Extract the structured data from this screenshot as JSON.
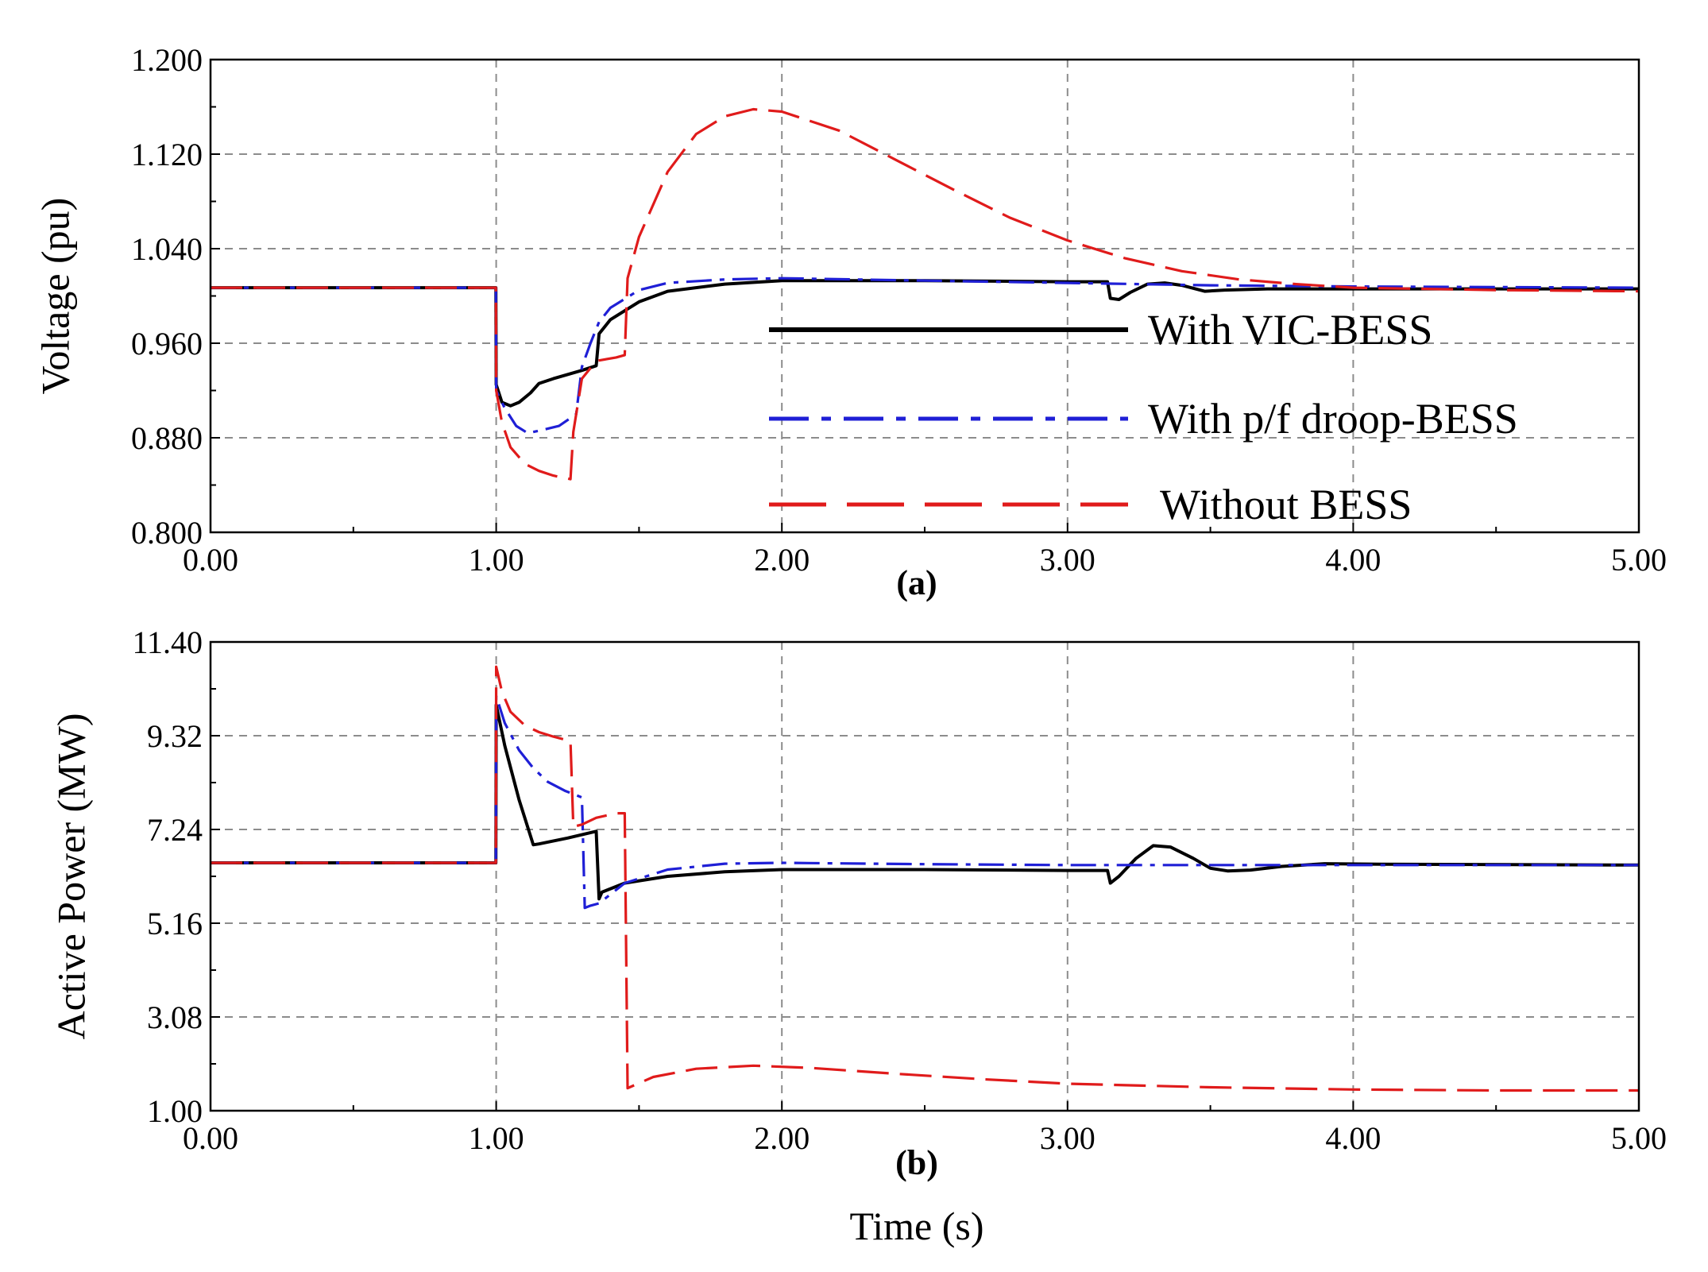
{
  "chart_data": [
    {
      "type": "line",
      "panel_label": "(a)",
      "ylabel": "Voltage (pu)",
      "xlabel": "",
      "xlim": [
        0,
        5
      ],
      "ylim": [
        0.8,
        1.2
      ],
      "x_ticks": [
        "0.00",
        "1.00",
        "2.00",
        "3.00",
        "4.00",
        "5.00"
      ],
      "y_ticks": [
        "0.800",
        "0.880",
        "0.960",
        "1.040",
        "1.120",
        "1.200"
      ],
      "grid": true,
      "legend_position": "center-right",
      "series": [
        {
          "name": "With VIC-BESS",
          "color": "#000000",
          "style": "solid",
          "x": [
            0,
            0.999,
            1.0,
            1.02,
            1.05,
            1.08,
            1.12,
            1.15,
            1.2,
            1.3,
            1.35,
            1.36,
            1.4,
            1.5,
            1.6,
            1.8,
            2.0,
            2.5,
            3.0,
            3.14,
            3.15,
            3.18,
            3.22,
            3.28,
            3.34,
            3.4,
            3.48,
            3.55,
            3.7,
            4.0,
            5.0
          ],
          "values": [
            1.007,
            1.007,
            0.925,
            0.91,
            0.907,
            0.91,
            0.918,
            0.926,
            0.93,
            0.937,
            0.941,
            0.968,
            0.98,
            0.995,
            1.004,
            1.01,
            1.013,
            1.013,
            1.012,
            1.012,
            0.998,
            0.997,
            1.003,
            1.01,
            1.011,
            1.009,
            1.004,
            1.005,
            1.006,
            1.006,
            1.006
          ]
        },
        {
          "name": "With p/f droop-BESS",
          "color": "#1f1fd6",
          "style": "dashdot",
          "x": [
            0,
            0.999,
            1.0,
            1.03,
            1.07,
            1.11,
            1.15,
            1.22,
            1.28,
            1.3,
            1.33,
            1.36,
            1.4,
            1.5,
            1.6,
            1.8,
            2.0,
            2.5,
            3.0,
            3.5,
            4.0,
            5.0
          ],
          "values": [
            1.007,
            1.007,
            0.92,
            0.905,
            0.89,
            0.884,
            0.886,
            0.89,
            0.9,
            0.94,
            0.96,
            0.978,
            0.99,
            1.005,
            1.011,
            1.014,
            1.015,
            1.013,
            1.011,
            1.009,
            1.008,
            1.007
          ]
        },
        {
          "name": "Without BESS",
          "color": "#e01b1b",
          "style": "dashed",
          "x": [
            0,
            0.999,
            1.0,
            1.02,
            1.05,
            1.1,
            1.15,
            1.2,
            1.26,
            1.27,
            1.3,
            1.35,
            1.42,
            1.45,
            1.46,
            1.5,
            1.6,
            1.7,
            1.8,
            1.9,
            2.0,
            2.2,
            2.4,
            2.6,
            2.8,
            3.0,
            3.2,
            3.4,
            3.6,
            3.8,
            4.0,
            4.5,
            5.0
          ],
          "values": [
            1.007,
            1.007,
            0.92,
            0.893,
            0.872,
            0.858,
            0.852,
            0.848,
            0.845,
            0.885,
            0.93,
            0.945,
            0.948,
            0.95,
            1.015,
            1.05,
            1.105,
            1.137,
            1.152,
            1.158,
            1.156,
            1.14,
            1.115,
            1.09,
            1.066,
            1.047,
            1.032,
            1.021,
            1.014,
            1.01,
            1.007,
            1.005,
            1.004
          ]
        }
      ]
    },
    {
      "type": "line",
      "panel_label": "(b)",
      "ylabel": "Active Power (MW)",
      "xlabel": "Time (s)",
      "xlim": [
        0,
        5
      ],
      "ylim": [
        1.0,
        11.4
      ],
      "x_ticks": [
        "0.00",
        "1.00",
        "2.00",
        "3.00",
        "4.00",
        "5.00"
      ],
      "y_ticks": [
        "1.00",
        "3.08",
        "5.16",
        "7.24",
        "9.32",
        "11.40"
      ],
      "grid": true,
      "series": [
        {
          "name": "With VIC-BESS",
          "color": "#000000",
          "style": "solid",
          "x": [
            0,
            0.999,
            1.0,
            1.03,
            1.08,
            1.13,
            1.15,
            1.25,
            1.35,
            1.36,
            1.37,
            1.45,
            1.6,
            1.8,
            2.0,
            2.5,
            3.0,
            3.14,
            3.15,
            3.18,
            3.24,
            3.3,
            3.36,
            3.44,
            3.5,
            3.56,
            3.64,
            3.75,
            3.9,
            4.1,
            5.0
          ],
          "values": [
            6.5,
            6.5,
            10.0,
            9.1,
            7.9,
            6.9,
            6.92,
            7.05,
            7.2,
            5.7,
            5.85,
            6.05,
            6.2,
            6.3,
            6.35,
            6.35,
            6.33,
            6.33,
            6.05,
            6.2,
            6.6,
            6.88,
            6.85,
            6.6,
            6.38,
            6.32,
            6.34,
            6.42,
            6.48,
            6.47,
            6.45
          ]
        },
        {
          "name": "With p/f droop-BESS",
          "color": "#1f1fd6",
          "style": "dashdot",
          "x": [
            0,
            0.999,
            1.0,
            1.03,
            1.08,
            1.13,
            1.18,
            1.24,
            1.3,
            1.31,
            1.33,
            1.36,
            1.45,
            1.6,
            1.8,
            2.0,
            2.5,
            3.0,
            3.5,
            4.0,
            5.0
          ],
          "values": [
            6.5,
            6.5,
            10.2,
            9.6,
            9.0,
            8.6,
            8.3,
            8.1,
            7.95,
            5.5,
            5.55,
            5.6,
            6.05,
            6.35,
            6.48,
            6.5,
            6.47,
            6.45,
            6.45,
            6.45,
            6.45
          ]
        },
        {
          "name": "Without BESS",
          "color": "#e01b1b",
          "style": "dashed",
          "x": [
            0,
            0.999,
            1.0,
            1.02,
            1.05,
            1.1,
            1.15,
            1.2,
            1.26,
            1.27,
            1.3,
            1.35,
            1.42,
            1.45,
            1.46,
            1.55,
            1.7,
            1.9,
            2.1,
            2.4,
            2.7,
            3.0,
            3.5,
            4.0,
            4.5,
            5.0
          ],
          "values": [
            6.5,
            6.5,
            10.85,
            10.3,
            9.85,
            9.55,
            9.4,
            9.3,
            9.2,
            7.3,
            7.35,
            7.5,
            7.6,
            7.6,
            1.5,
            1.75,
            1.93,
            2.0,
            1.95,
            1.82,
            1.7,
            1.6,
            1.52,
            1.47,
            1.45,
            1.45
          ]
        }
      ]
    }
  ]
}
